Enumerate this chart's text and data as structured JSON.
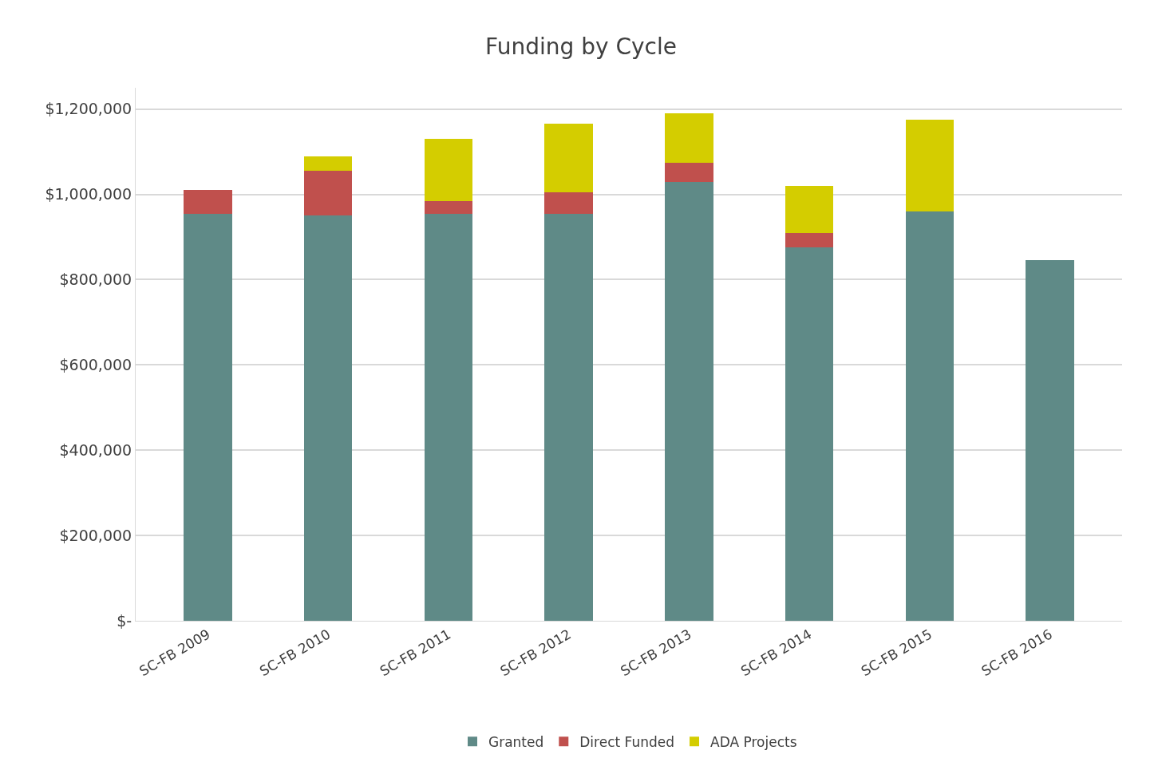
{
  "chart_data": {
    "type": "bar",
    "title": "Funding by Cycle",
    "stacked": true,
    "grid": "y",
    "legend": "bottom",
    "categories": [
      "SC-FB 2009",
      "SC-FB 2010",
      "SC-FB 2011",
      "SC-FB 2012",
      "SC-FB 2013",
      "SC-FB 2014",
      "SC-FB 2015",
      "SC-FB 2016"
    ],
    "ylim": [
      0,
      1250000
    ],
    "yticks": [
      {
        "value": 0,
        "label": "$-"
      },
      {
        "value": 200000,
        "label": "$200,000"
      },
      {
        "value": 400000,
        "label": "$400,000"
      },
      {
        "value": 600000,
        "label": "$600,000"
      },
      {
        "value": 800000,
        "label": "$800,000"
      },
      {
        "value": 1000000,
        "label": "$1,000,000"
      },
      {
        "value": 1200000,
        "label": "$1,200,000"
      }
    ],
    "series": [
      {
        "name": "Granted",
        "color": "#5f8a87",
        "values": [
          955000,
          950000,
          955000,
          955000,
          1030000,
          875000,
          960000,
          845000
        ]
      },
      {
        "name": "Direct Funded",
        "color": "#c0504d",
        "values": [
          55000,
          105000,
          30000,
          50000,
          45000,
          35000,
          0,
          0
        ]
      },
      {
        "name": "ADA Projects",
        "color": "#d4cd00",
        "values": [
          0,
          35000,
          145000,
          160000,
          115000,
          110000,
          215000,
          0
        ]
      }
    ]
  }
}
